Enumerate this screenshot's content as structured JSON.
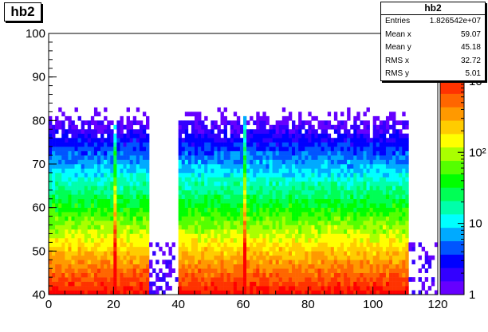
{
  "chart_data": {
    "type": "heatmap",
    "title": "hb2",
    "xlim": [
      0,
      120
    ],
    "ylim": [
      40,
      100
    ],
    "x_ticks": [
      "0",
      "20",
      "40",
      "60",
      "80",
      "100",
      "120"
    ],
    "y_ticks": [
      "40",
      "50",
      "60",
      "70",
      "80",
      "90",
      "100"
    ],
    "z_scale": "log",
    "z_ticks": [
      "1",
      "10",
      "10²",
      "10³"
    ],
    "filled_x_ranges": [
      [
        0,
        31
      ],
      [
        40,
        111
      ]
    ],
    "sparse_x_ranges": [
      [
        31,
        40
      ],
      [
        111,
        120
      ]
    ],
    "high_density_columns": [
      20.5,
      60.5
    ],
    "palette": [
      "#6600ff",
      "#3300ff",
      "#0000ff",
      "#0055ff",
      "#00aaff",
      "#00ffff",
      "#00ffaa",
      "#00ff55",
      "#00ff00",
      "#55ff00",
      "#aaff00",
      "#ffff00",
      "#ffcc00",
      "#ff9900",
      "#ff6600",
      "#ff3300",
      "#ff0000"
    ]
  },
  "stats": {
    "title": "hb2",
    "rows": [
      {
        "label": "Entries",
        "value": "1.826542e+07"
      },
      {
        "label": "Mean x",
        "value": "59.07"
      },
      {
        "label": "Mean y",
        "value": "45.18"
      },
      {
        "label": "RMS x",
        "value": "32.72"
      },
      {
        "label": "RMS y",
        "value": "5.01"
      }
    ]
  }
}
